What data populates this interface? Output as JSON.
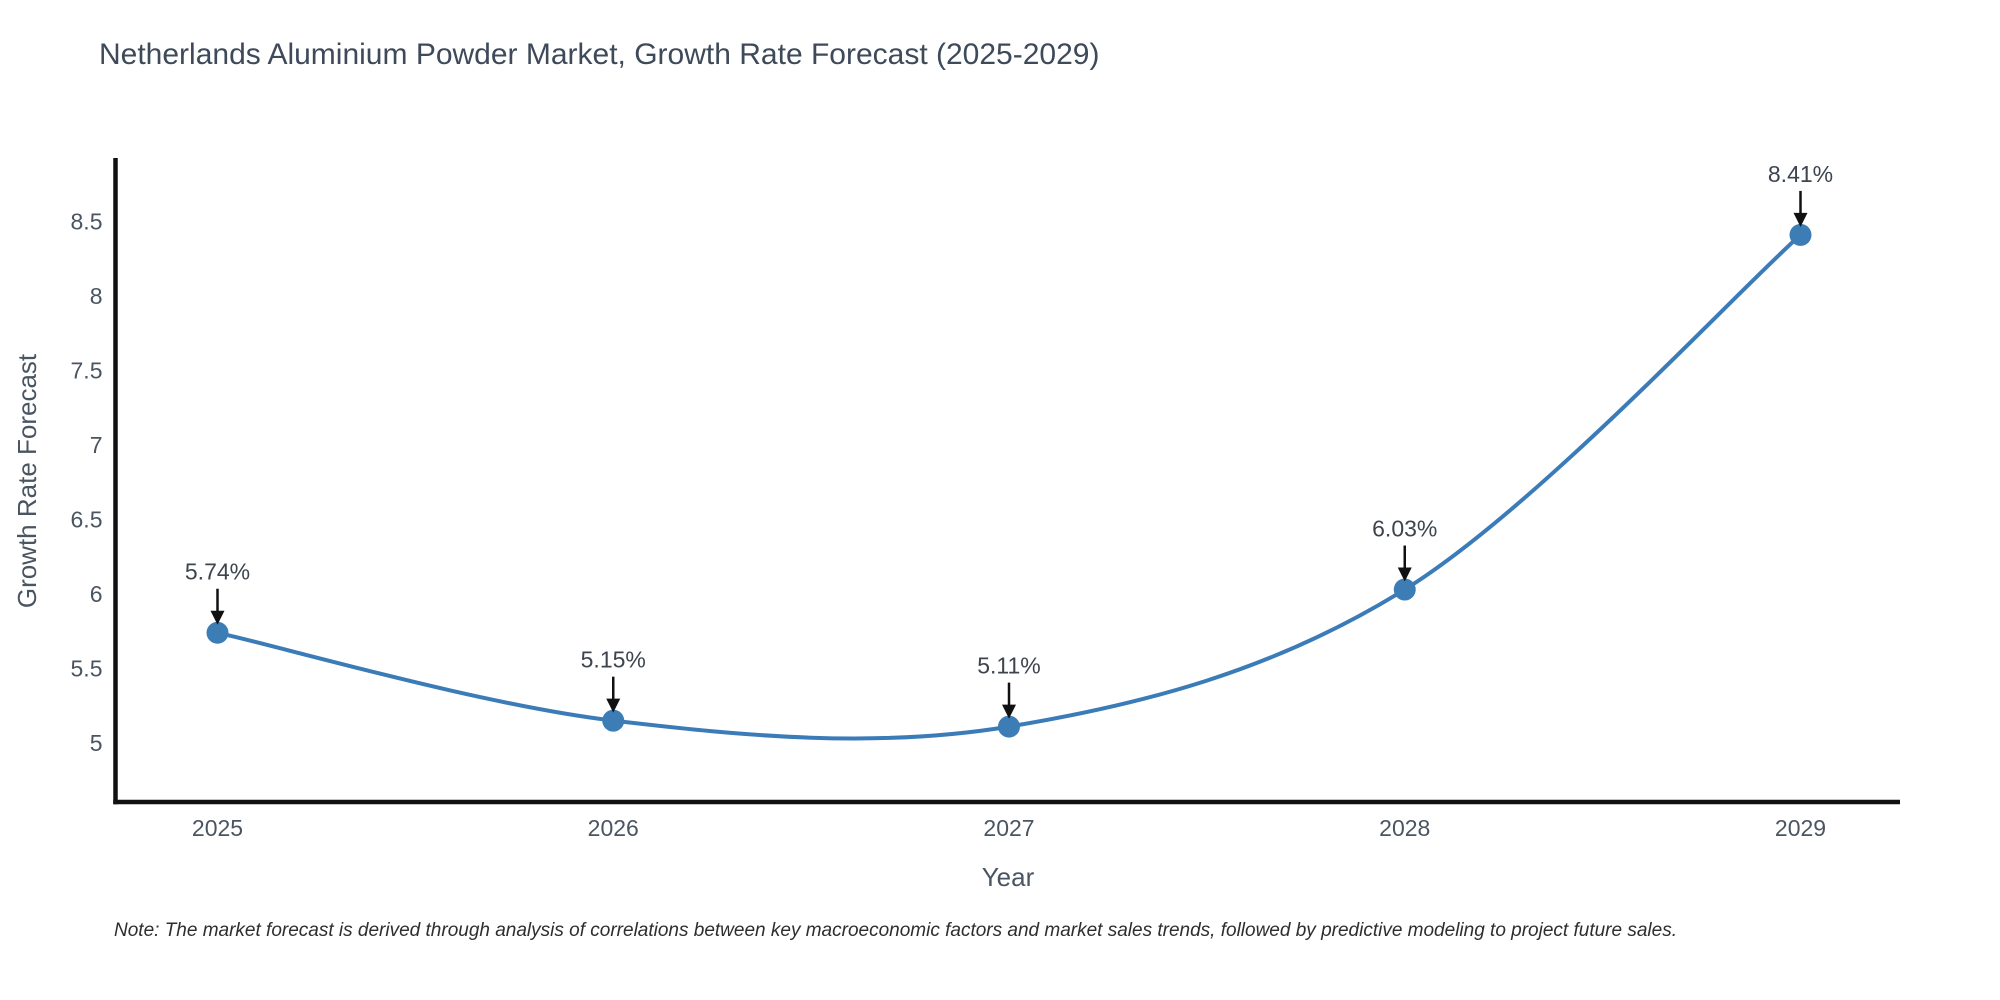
{
  "page": {
    "title": "Netherlands Aluminium Powder Market, Growth Rate Forecast (2025-2029)",
    "note": "Note: The market forecast is derived through analysis of correlations between key macroeconomic factors and market sales trends, followed by predictive modeling to project future sales."
  },
  "chart_data": {
    "type": "line",
    "title": "Netherlands Aluminium Powder Market, Growth Rate Forecast (2025-2029)",
    "x": [
      2025,
      2026,
      2027,
      2028,
      2029
    ],
    "series": [
      {
        "name": "Growth Rate Forecast",
        "values": [
          5.74,
          5.15,
          5.11,
          6.03,
          8.41
        ]
      }
    ],
    "point_labels": [
      "5.74%",
      "5.15%",
      "5.11%",
      "6.03%",
      "8.41%"
    ],
    "xlabel": "Year",
    "ylabel": "Growth Rate Forecast",
    "xtick_labels": [
      "2025",
      "2026",
      "2027",
      "2028",
      "2029"
    ],
    "ytick_values": [
      5,
      5.5,
      6,
      6.5,
      7,
      7.5,
      8,
      8.5
    ],
    "ytick_labels": [
      "5",
      "5.5",
      "6",
      "6.5",
      "7",
      "7.5",
      "8",
      "8.5"
    ],
    "xlim": [
      2024.74,
      2029.25
    ],
    "ylim": [
      4.6,
      8.95
    ],
    "grid": false,
    "legend": "none",
    "line_shape": "spline",
    "colors": {
      "line": "#3b7cb8",
      "marker": "#3c7db6",
      "axis": "#111111",
      "arrow": "#111111",
      "tick_text": "#4a5562",
      "annotation_text": "#3d444d",
      "title_text": "#3e4a59",
      "note_text": "#2e2e2e",
      "background": "#ffffff"
    }
  }
}
